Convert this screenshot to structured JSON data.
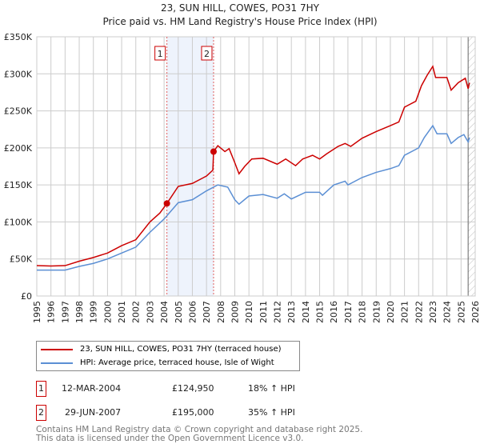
{
  "title": "23, SUN HILL, COWES, PO31 7HY",
  "subtitle": "Price paid vs. HM Land Registry's House Price Index (HPI)",
  "chart_data": {
    "type": "line",
    "xlim": [
      1995,
      2026
    ],
    "ylim": [
      0,
      350000
    ],
    "yticks": [
      {
        "v": 0,
        "label": "£0"
      },
      {
        "v": 50000,
        "label": "£50K"
      },
      {
        "v": 100000,
        "label": "£100K"
      },
      {
        "v": 150000,
        "label": "£150K"
      },
      {
        "v": 200000,
        "label": "£200K"
      },
      {
        "v": 250000,
        "label": "£250K"
      },
      {
        "v": 300000,
        "label": "£300K"
      },
      {
        "v": 350000,
        "label": "£350K"
      }
    ],
    "xticks": [
      "1995",
      "1996",
      "1997",
      "1998",
      "1999",
      "2000",
      "2001",
      "2002",
      "2003",
      "2004",
      "2005",
      "2006",
      "2007",
      "2008",
      "2009",
      "2010",
      "2011",
      "2012",
      "2013",
      "2014",
      "2015",
      "2016",
      "2017",
      "2018",
      "2019",
      "2020",
      "2021",
      "2022",
      "2023",
      "2024",
      "2025",
      "2026"
    ],
    "shaded_range": [
      2004.2,
      2007.5
    ],
    "forecast_hatch_from": 2025.5,
    "series": [
      {
        "name": "23, SUN HILL, COWES, PO31 7HY (terraced house)",
        "color": "#cc0000",
        "points": [
          [
            1995,
            41000
          ],
          [
            1996,
            40500
          ],
          [
            1997,
            41000
          ],
          [
            1998,
            47000
          ],
          [
            1999,
            52000
          ],
          [
            2000,
            58000
          ],
          [
            2001,
            68000
          ],
          [
            2002,
            76000
          ],
          [
            2003,
            100000
          ],
          [
            2003.7,
            112000
          ],
          [
            2004.2,
            124950
          ],
          [
            2005,
            148000
          ],
          [
            2006,
            152000
          ],
          [
            2007,
            162000
          ],
          [
            2007.45,
            170000
          ],
          [
            2007.5,
            195000
          ],
          [
            2007.8,
            203000
          ],
          [
            2008.3,
            195000
          ],
          [
            2008.6,
            199000
          ],
          [
            2009,
            180000
          ],
          [
            2009.3,
            165000
          ],
          [
            2009.7,
            175000
          ],
          [
            2010.2,
            185000
          ],
          [
            2011,
            186000
          ],
          [
            2012,
            178000
          ],
          [
            2012.6,
            185000
          ],
          [
            2013.3,
            176000
          ],
          [
            2013.8,
            185000
          ],
          [
            2014.5,
            190000
          ],
          [
            2015,
            185000
          ],
          [
            2015.5,
            192000
          ],
          [
            2016.3,
            202000
          ],
          [
            2016.8,
            206000
          ],
          [
            2017.2,
            202000
          ],
          [
            2018,
            213000
          ],
          [
            2019,
            222000
          ],
          [
            2020,
            230000
          ],
          [
            2020.6,
            235000
          ],
          [
            2021,
            255000
          ],
          [
            2021.8,
            263000
          ],
          [
            2022.2,
            284000
          ],
          [
            2022.6,
            298000
          ],
          [
            2023,
            310000
          ],
          [
            2023.2,
            295000
          ],
          [
            2024,
            295000
          ],
          [
            2024.3,
            278000
          ],
          [
            2024.8,
            288000
          ],
          [
            2025.3,
            294000
          ],
          [
            2025.5,
            280000
          ],
          [
            2025.6,
            288000
          ]
        ]
      },
      {
        "name": "HPI: Average price, terraced house, Isle of Wight",
        "color": "#5b8fd4",
        "points": [
          [
            1995,
            35000
          ],
          [
            1997,
            35000
          ],
          [
            1998,
            40000
          ],
          [
            1999,
            44000
          ],
          [
            2000,
            50000
          ],
          [
            2001,
            58000
          ],
          [
            2002,
            66000
          ],
          [
            2003,
            86000
          ],
          [
            2004,
            104000
          ],
          [
            2005,
            126000
          ],
          [
            2006,
            130000
          ],
          [
            2007,
            142000
          ],
          [
            2007.8,
            150000
          ],
          [
            2008.5,
            147000
          ],
          [
            2009,
            130000
          ],
          [
            2009.3,
            124000
          ],
          [
            2010,
            135000
          ],
          [
            2011,
            137000
          ],
          [
            2012,
            132000
          ],
          [
            2012.5,
            138000
          ],
          [
            2013,
            131000
          ],
          [
            2014,
            140000
          ],
          [
            2015,
            140000
          ],
          [
            2015.2,
            136000
          ],
          [
            2016,
            150000
          ],
          [
            2016.8,
            155000
          ],
          [
            2017,
            150000
          ],
          [
            2018,
            160000
          ],
          [
            2019,
            167000
          ],
          [
            2020,
            172000
          ],
          [
            2020.6,
            176000
          ],
          [
            2021,
            190000
          ],
          [
            2022,
            200000
          ],
          [
            2022.4,
            214000
          ],
          [
            2023,
            230000
          ],
          [
            2023.3,
            219000
          ],
          [
            2024,
            219000
          ],
          [
            2024.3,
            206000
          ],
          [
            2024.8,
            214000
          ],
          [
            2025.2,
            218000
          ],
          [
            2025.5,
            208000
          ],
          [
            2025.6,
            214000
          ]
        ]
      }
    ],
    "sales": [
      {
        "label": "1",
        "x": 2004.2,
        "y": 124950
      },
      {
        "label": "2",
        "x": 2007.5,
        "y": 195000
      }
    ]
  },
  "legend": {
    "items": [
      "23, SUN HILL, COWES, PO31 7HY (terraced house)",
      "HPI: Average price, terraced house, Isle of Wight"
    ]
  },
  "transactions": [
    {
      "num": "1",
      "date": "12-MAR-2004",
      "price": "£124,950",
      "hpi": "18% ↑ HPI"
    },
    {
      "num": "2",
      "date": "29-JUN-2007",
      "price": "£195,000",
      "hpi": "35% ↑ HPI"
    }
  ],
  "footer": [
    "Contains HM Land Registry data © Crown copyright and database right 2025.",
    "This data is licensed under the Open Government Licence v3.0."
  ]
}
